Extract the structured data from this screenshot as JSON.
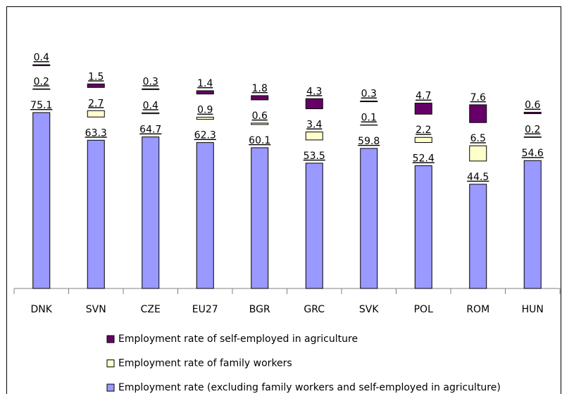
{
  "chart_data": {
    "type": "bar",
    "stacked": true,
    "categories": [
      "DNK",
      "SVN",
      "CZE",
      "EU27",
      "BGR",
      "GRC",
      "SVK",
      "POL",
      "ROM",
      "HUN"
    ],
    "series": [
      {
        "name": "Employment rate (excluding family workers and self-employed in agriculture)",
        "color": "#9999ff",
        "values": [
          75.1,
          63.3,
          64.7,
          62.3,
          60.1,
          53.5,
          59.8,
          52.4,
          44.5,
          54.6
        ]
      },
      {
        "name": "Employment rate of family workers",
        "color": "#ffffcc",
        "values": [
          0.2,
          2.7,
          0.4,
          0.9,
          0.6,
          3.4,
          0.1,
          2.2,
          6.5,
          0.2
        ]
      },
      {
        "name": "Employment rate of self-employed in agriculture",
        "color": "#660066",
        "values": [
          0.4,
          1.5,
          0.3,
          1.4,
          1.8,
          4.3,
          0.3,
          4.7,
          7.6,
          0.6
        ]
      }
    ],
    "legend": "bottom"
  }
}
